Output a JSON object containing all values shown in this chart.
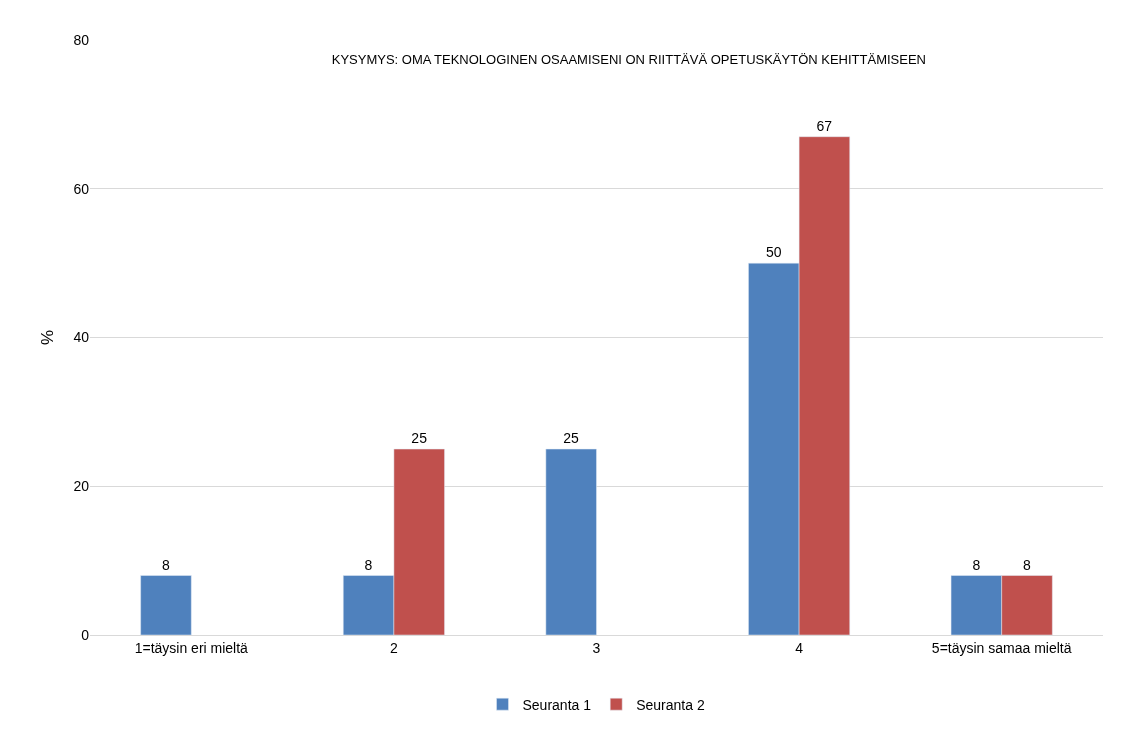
{
  "chart_data": {
    "type": "bar",
    "title": "KYSYMYS: OMA TEKNOLOGINEN OSAAMISENI ON RIITTÄVÄ OPETUSKÄYTÖN KEHITTÄMISEEN",
    "ylabel": "%",
    "categories": [
      "1=täysin eri mieltä",
      "2",
      "3",
      "4",
      "5=täysin samaa mieltä"
    ],
    "series": [
      {
        "name": "Seuranta 1",
        "color": "#4f81bd",
        "values": [
          8,
          8,
          25,
          50,
          8
        ]
      },
      {
        "name": "Seuranta 2",
        "color": "#c0504d",
        "values": [
          null,
          25,
          null,
          67,
          8
        ]
      }
    ],
    "ylim": [
      0,
      80
    ],
    "yticks": [
      0,
      20,
      40,
      60,
      80
    ],
    "grid": "y",
    "legend": "bottom",
    "data_labels": true
  }
}
